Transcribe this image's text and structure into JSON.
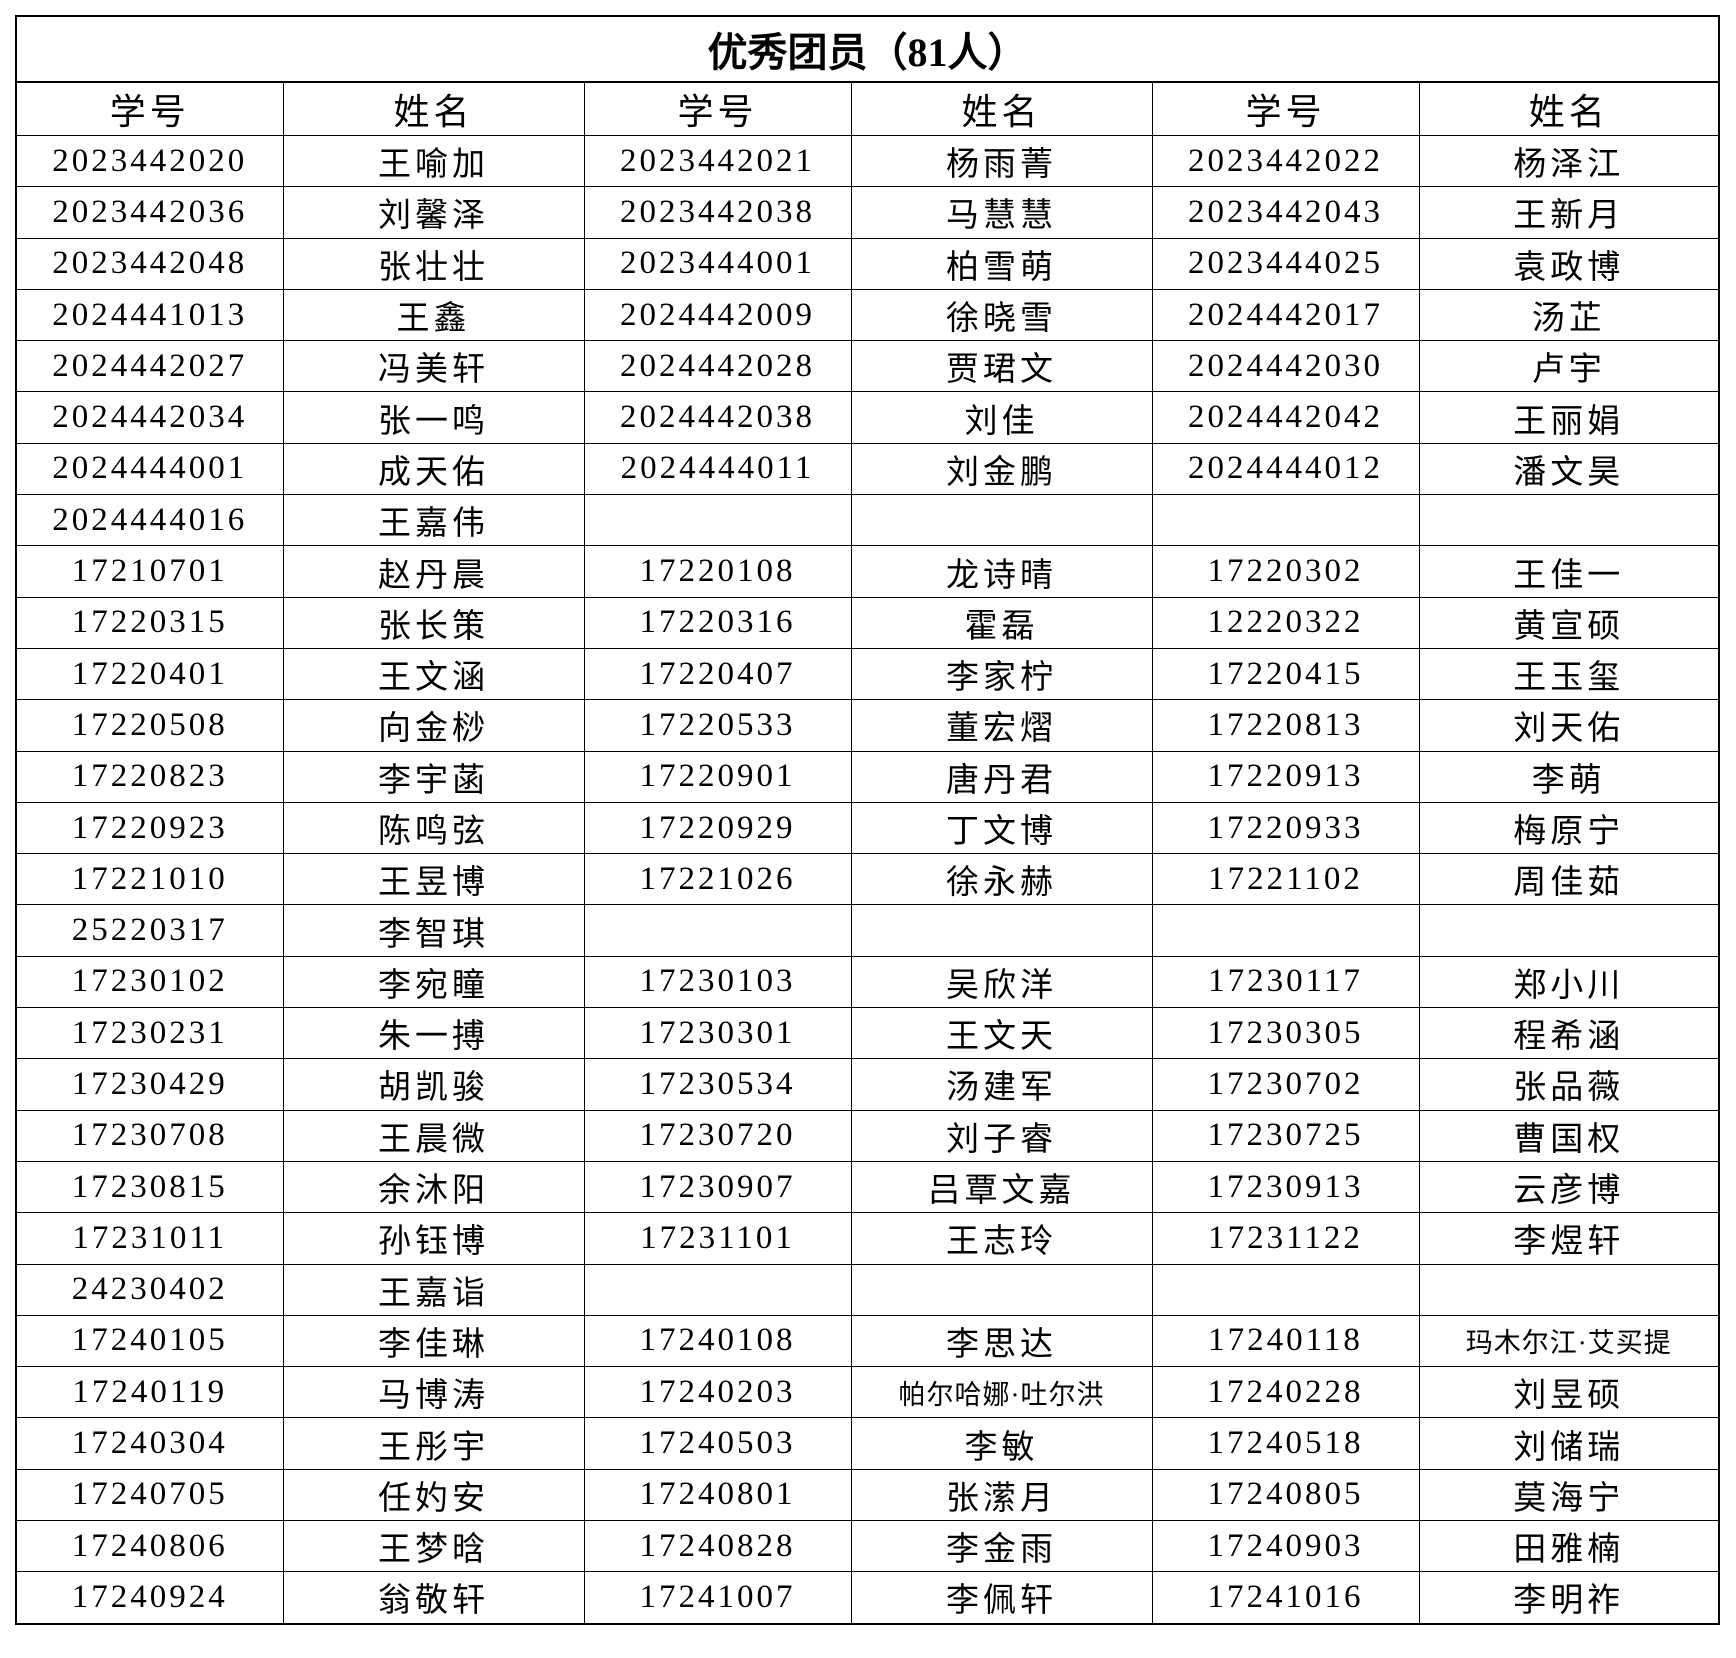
{
  "title": "优秀团员（81人）",
  "headers": [
    "学号",
    "姓名",
    "学号",
    "姓名",
    "学号",
    "姓名"
  ],
  "rows": [
    [
      "2023442020",
      "王喻加",
      "2023442021",
      "杨雨菁",
      "2023442022",
      "杨泽江"
    ],
    [
      "2023442036",
      "刘馨泽",
      "2023442038",
      "马慧慧",
      "2023442043",
      "王新月"
    ],
    [
      "2023442048",
      "张壮壮",
      "2023444001",
      "柏雪萌",
      "2023444025",
      "袁政博"
    ],
    [
      "2024441013",
      "王鑫",
      "2024442009",
      "徐晓雪",
      "2024442017",
      "汤芷"
    ],
    [
      "2024442027",
      "冯美轩",
      "2024442028",
      "贾珺文",
      "2024442030",
      "卢宇"
    ],
    [
      "2024442034",
      "张一鸣",
      "2024442038",
      "刘佳",
      "2024442042",
      "王丽娟"
    ],
    [
      "2024444001",
      "成天佑",
      "2024444011",
      "刘金鹏",
      "2024444012",
      "潘文昊"
    ],
    [
      "2024444016",
      "王嘉伟",
      "",
      "",
      "",
      ""
    ],
    [
      "17210701",
      "赵丹晨",
      "17220108",
      "龙诗晴",
      "17220302",
      "王佳一"
    ],
    [
      "17220315",
      "张长策",
      "17220316",
      "霍磊",
      "12220322",
      "黄宣硕"
    ],
    [
      "17220401",
      "王文涵",
      "17220407",
      "李家柠",
      "17220415",
      "王玉玺"
    ],
    [
      "17220508",
      "向金桫",
      "17220533",
      "董宏熠",
      "17220813",
      "刘天佑"
    ],
    [
      "17220823",
      "李宇菡",
      "17220901",
      "唐丹君",
      "17220913",
      "李萌"
    ],
    [
      "17220923",
      "陈鸣弦",
      "17220929",
      "丁文博",
      "17220933",
      "梅原宁"
    ],
    [
      "17221010",
      "王昱博",
      "17221026",
      "徐永赫",
      "17221102",
      "周佳茹"
    ],
    [
      "25220317",
      "李智琪",
      "",
      "",
      "",
      ""
    ],
    [
      "17230102",
      "李宛瞳",
      "17230103",
      "吴欣洋",
      "17230117",
      "郑小川"
    ],
    [
      "17230231",
      "朱一搏",
      "17230301",
      "王文天",
      "17230305",
      "程希涵"
    ],
    [
      "17230429",
      "胡凯骏",
      "17230534",
      "汤建军",
      "17230702",
      "张品薇"
    ],
    [
      "17230708",
      "王晨微",
      "17230720",
      "刘子睿",
      "17230725",
      "曹国权"
    ],
    [
      "17230815",
      "余沐阳",
      "17230907",
      "吕覃文嘉",
      "17230913",
      "云彦博"
    ],
    [
      "17231011",
      "孙钰博",
      "17231101",
      "王志玲",
      "17231122",
      "李煜轩"
    ],
    [
      "24230402",
      "王嘉诣",
      "",
      "",
      "",
      ""
    ],
    [
      "17240105",
      "李佳琳",
      "17240108",
      "李思达",
      "17240118",
      "玛木尔江·艾买提"
    ],
    [
      "17240119",
      "马博涛",
      "17240203",
      "帕尔哈娜·吐尔洪",
      "17240228",
      "刘昱硕"
    ],
    [
      "17240304",
      "王彤宇",
      "17240503",
      "李敏",
      "17240518",
      "刘储瑞"
    ],
    [
      "17240705",
      "任妁安",
      "17240801",
      "张潆月",
      "17240805",
      "莫海宁"
    ],
    [
      "17240806",
      "王梦晗",
      "17240828",
      "李金雨",
      "17240903",
      "田雅楠"
    ],
    [
      "17240924",
      "翁敬轩",
      "17241007",
      "李佩轩",
      "17241016",
      "李明祚"
    ]
  ]
}
